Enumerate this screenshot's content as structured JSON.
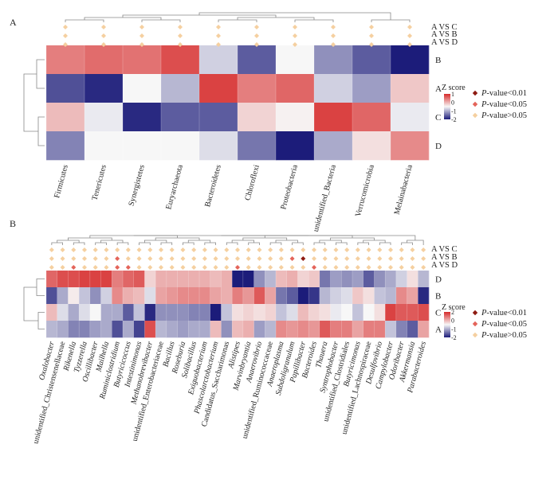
{
  "colors": {
    "high": "#d62a2a",
    "mid": "#f7f7f7",
    "low": "#1c1c7a",
    "p001": "#8e1b12",
    "p005": "#e4645a",
    "pns": "#f5d0a0",
    "tree": "#888888"
  },
  "legend": {
    "zscore_title": "Z score",
    "zscore_ticks_A": [
      "1",
      "0",
      "-1",
      "-2"
    ],
    "zscore_ticks_B": [
      "2",
      "0",
      "-1",
      "-2"
    ],
    "items": [
      {
        "italic": "P",
        "text": "-value<0.01",
        "color_key": "p001"
      },
      {
        "italic": "P",
        "text": "-value<0.05",
        "color_key": "p005"
      },
      {
        "italic": "P",
        "text": "-value>0.05",
        "color_key": "pns"
      }
    ]
  },
  "chart_data": [
    {
      "type": "heatmap",
      "panel": "A",
      "title": "",
      "columns": [
        "Firmicutes",
        "Tenericutes",
        "Synergistetes",
        "Euryarchaeota",
        "Bacteroidetes",
        "Chloroflexi",
        "Proteobacteria",
        "unidentified_Bacteria",
        "Verrucomicrobia",
        "Melainabacteria"
      ],
      "rows": [
        "B",
        "A",
        "C",
        "D"
      ],
      "values": [
        [
          1.0,
          1.15,
          1.1,
          1.4,
          -0.3,
          -1.2,
          0.0,
          -0.8,
          -1.2,
          -1.7
        ],
        [
          -1.3,
          -1.6,
          0.0,
          -0.5,
          1.5,
          1.0,
          1.2,
          -0.3,
          -0.7,
          0.4
        ],
        [
          0.5,
          -0.1,
          -1.6,
          -1.2,
          -1.2,
          0.3,
          0.05,
          1.5,
          1.2,
          -0.1
        ],
        [
          -0.9,
          0.0,
          0.0,
          0.0,
          -0.2,
          -1.0,
          -1.7,
          -0.6,
          0.2,
          0.9
        ]
      ],
      "comparisons": [
        "A VS C",
        "A VS B",
        "A VS D"
      ],
      "significance": [
        [
          "pns",
          "pns",
          "pns",
          "pns",
          "pns",
          "pns",
          "pns",
          "pns",
          "pns",
          "pns"
        ],
        [
          "pns",
          "pns",
          "pns",
          "pns",
          "pns",
          "pns",
          "pns",
          "pns",
          "pns",
          "pns"
        ],
        [
          "pns",
          "pns",
          "pns",
          "pns",
          "pns",
          "pns",
          "pns",
          "pns",
          "pns",
          "pns"
        ]
      ]
    },
    {
      "type": "heatmap",
      "panel": "B",
      "title": "",
      "columns": [
        "Oxalobacter",
        "unidentified_Christensenellaceae",
        "Rikenella",
        "Tyzzerella",
        "Oscillibacter",
        "Mailhella",
        "Ruminiclostridium",
        "Butyricicoccus",
        "Intestinimonas",
        "Methanobrevibacter",
        "unidentified_Enterobacteriaceae",
        "Bacillus",
        "Roseburia",
        "Solibacillus",
        "Exiguobacterium",
        "Phascolarctobacterium",
        "Candidatus_Saccharimonas",
        "Alistipes",
        "Marvinbryantia",
        "Anaerovibrio",
        "unidentified_Ruminococcaceae",
        "Anaeroplasma",
        "Subdoligranulum",
        "Papillibacter",
        "Bacteroides",
        "Thauera",
        "Syntrophobacter",
        "unidentified_Clostridiales",
        "Butyricimonas",
        "unidentified_Lachnospiraceae",
        "Desulfovibrio",
        "Campylobacter",
        "Odoribacter",
        "Akkermansia",
        "Parabacteroides"
      ],
      "italic_columns": [
        0,
        2,
        3,
        4,
        5,
        6,
        7,
        8,
        9,
        11,
        12,
        13,
        14,
        15,
        17,
        18,
        19,
        21,
        22,
        23,
        24,
        25,
        26,
        28,
        30,
        31,
        32,
        33,
        34
      ],
      "rows": [
        "D",
        "B",
        "C",
        "A"
      ],
      "values": [
        [
          1.2,
          1.4,
          1.4,
          1.5,
          1.5,
          1.5,
          1.0,
          1.2,
          1.3,
          0.3,
          0.6,
          0.6,
          0.6,
          0.6,
          0.6,
          0.5,
          0.6,
          -1.7,
          -1.7,
          -0.8,
          -0.5,
          0.5,
          0.6,
          0.3,
          0.4,
          -1.0,
          -0.7,
          -0.8,
          -0.7,
          -1.2,
          -0.8,
          -0.6,
          -0.3,
          0.2,
          -0.5
        ],
        [
          -1.3,
          -0.6,
          0.1,
          -0.4,
          -0.8,
          -0.3,
          0.9,
          0.6,
          0.5,
          -0.2,
          0.7,
          0.8,
          0.9,
          0.9,
          0.9,
          0.7,
          0.6,
          1.0,
          0.8,
          1.3,
          0.7,
          -1.0,
          -1.2,
          -1.7,
          -1.5,
          -0.5,
          -0.3,
          -0.2,
          0.4,
          0.2,
          -0.4,
          -0.5,
          0.9,
          0.7,
          -1.6
        ],
        [
          0.5,
          -0.2,
          -0.6,
          -0.2,
          0.0,
          -0.6,
          -0.6,
          -1.2,
          -0.4,
          -1.6,
          -0.8,
          -0.8,
          -0.8,
          -0.9,
          -0.9,
          -1.7,
          -0.4,
          0.2,
          0.3,
          0.2,
          0.3,
          -0.4,
          -0.2,
          0.5,
          0.3,
          0.2,
          -0.1,
          0.0,
          -0.4,
          0.0,
          0.2,
          1.5,
          1.3,
          1.3,
          1.4
        ],
        [
          -0.5,
          -0.6,
          -0.9,
          -0.9,
          -0.7,
          -0.6,
          -1.3,
          -0.6,
          -1.4,
          1.4,
          -0.5,
          -0.6,
          -0.7,
          -0.6,
          -0.6,
          0.5,
          -0.8,
          0.5,
          0.6,
          -0.7,
          -0.5,
          0.9,
          0.8,
          0.9,
          0.8,
          1.3,
          1.0,
          1.0,
          0.7,
          1.0,
          1.0,
          -0.4,
          -0.9,
          -1.2,
          0.7
        ]
      ],
      "comparisons": [
        "A VS C",
        "A VS B",
        "A VS D"
      ],
      "significance": [
        [
          "pns",
          "pns",
          "pns",
          "pns",
          "pns",
          "pns",
          "pns",
          "pns",
          "pns",
          "pns",
          "pns",
          "pns",
          "pns",
          "pns",
          "pns",
          "pns",
          "pns",
          "pns",
          "pns",
          "pns",
          "pns",
          "pns",
          "pns",
          "pns",
          "pns",
          "pns",
          "pns",
          "pns",
          "pns",
          "pns",
          "pns",
          "pns",
          "pns",
          "pns",
          "pns"
        ],
        [
          "pns",
          "pns",
          "pns",
          "pns",
          "pns",
          "pns",
          "p005",
          "pns",
          "pns",
          "pns",
          "pns",
          "pns",
          "pns",
          "pns",
          "pns",
          "pns",
          "pns",
          "pns",
          "pns",
          "pns",
          "pns",
          "pns",
          "p005",
          "p001",
          "pns",
          "pns",
          "pns",
          "pns",
          "pns",
          "pns",
          "pns",
          "pns",
          "pns",
          "pns",
          "pns"
        ],
        [
          "pns",
          "pns",
          "p005",
          "pns",
          "pns",
          "pns",
          "p005",
          "p005",
          "pns",
          "pns",
          "pns",
          "pns",
          "pns",
          "pns",
          "pns",
          "pns",
          "pns",
          "p005",
          "pns",
          "pns",
          "pns",
          "pns",
          "pns",
          "pns",
          "p005",
          "pns",
          "pns",
          "pns",
          "pns",
          "pns",
          "pns",
          "pns",
          "pns",
          "pns",
          "pns"
        ]
      ]
    }
  ]
}
